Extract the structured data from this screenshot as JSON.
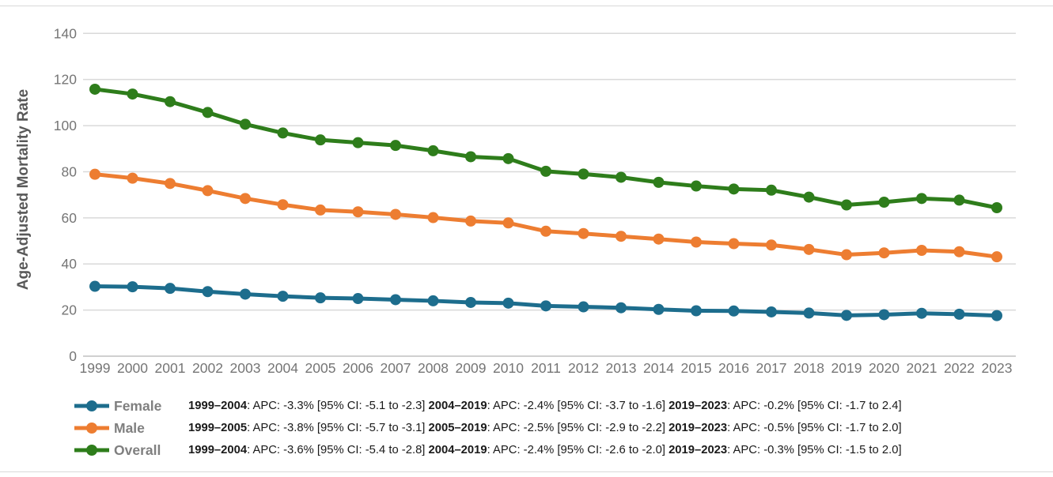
{
  "chart_data": {
    "type": "line",
    "title": "",
    "ylabel": "Age-Adjusted Mortality Rate",
    "xlabel": "",
    "ylim": [
      0,
      140
    ],
    "yticks": [
      0,
      20,
      40,
      60,
      80,
      100,
      120,
      140
    ],
    "grid": "horizontal-only",
    "legend_position": "bottom-left",
    "x": [
      1999,
      2000,
      2001,
      2002,
      2003,
      2004,
      2005,
      2006,
      2007,
      2008,
      2009,
      2010,
      2011,
      2012,
      2013,
      2014,
      2015,
      2016,
      2017,
      2018,
      2019,
      2020,
      2021,
      2022,
      2023
    ],
    "series": [
      {
        "name": "Female",
        "color": "#1D6D8D",
        "values": [
          30.3,
          30.1,
          29.4,
          28.0,
          26.9,
          26.0,
          25.3,
          25.0,
          24.5,
          24.0,
          23.3,
          23.0,
          21.8,
          21.4,
          21.0,
          20.3,
          19.7,
          19.6,
          19.2,
          18.7,
          17.7,
          18.0,
          18.6,
          18.2,
          17.6
        ]
      },
      {
        "name": "Male",
        "color": "#ED7D31",
        "values": [
          78.9,
          77.2,
          74.9,
          71.8,
          68.4,
          65.7,
          63.4,
          62.6,
          61.5,
          60.1,
          58.6,
          57.8,
          54.2,
          53.2,
          52.0,
          50.8,
          49.5,
          48.8,
          48.2,
          46.3,
          44.0,
          44.8,
          45.9,
          45.3,
          43.1
        ]
      },
      {
        "name": "Overall",
        "color": "#2E7D1B",
        "values": [
          115.8,
          113.7,
          110.4,
          105.7,
          100.6,
          96.8,
          93.8,
          92.6,
          91.4,
          89.1,
          86.5,
          85.7,
          80.2,
          79.0,
          77.6,
          75.4,
          73.8,
          72.5,
          72.0,
          69.0,
          65.6,
          66.8,
          68.4,
          67.7,
          64.4
        ]
      }
    ]
  },
  "legend": {
    "rows": [
      {
        "series": "Female",
        "color": "#1D6D8D",
        "segments": [
          {
            "text": "1999–2004",
            "bold": true
          },
          {
            "text": ": APC: -3.3% [95% CI: -5.1 to -2.3] ",
            "bold": false
          },
          {
            "text": "2004–2019",
            "bold": true
          },
          {
            "text": ": APC: -2.4% [95% CI: -3.7 to -1.6] ",
            "bold": false
          },
          {
            "text": "2019–2023",
            "bold": true
          },
          {
            "text": ": APC: -0.2% [95% CI: -1.7 to 2.4]",
            "bold": false
          }
        ]
      },
      {
        "series": "Male",
        "color": "#ED7D31",
        "segments": [
          {
            "text": "1999–2005",
            "bold": true
          },
          {
            "text": ": APC: -3.8% [95% CI: -5.7 to -3.1] ",
            "bold": false
          },
          {
            "text": "2005–2019",
            "bold": true
          },
          {
            "text": ": APC: -2.5% [95% CI: -2.9 to -2.2] ",
            "bold": false
          },
          {
            "text": "2019–2023",
            "bold": true
          },
          {
            "text": ": APC: -0.5% [95% CI: -1.7 to 2.0]",
            "bold": false
          }
        ]
      },
      {
        "series": "Overall",
        "color": "#2E7D1B",
        "segments": [
          {
            "text": "1999–2004",
            "bold": true
          },
          {
            "text": ": APC: -3.6% [95% CI: -5.4 to -2.8] ",
            "bold": false
          },
          {
            "text": "2004–2019",
            "bold": true
          },
          {
            "text": ": APC: -2.4% [95% CI: -2.6 to -2.0] ",
            "bold": false
          },
          {
            "text": "2019–2023",
            "bold": true
          },
          {
            "text": ": APC: -0.3% [95% CI: -1.5 to 2.0]",
            "bold": false
          }
        ]
      }
    ]
  },
  "colors": {
    "grid": "#D9D9D9",
    "axis": "#C0C0C0",
    "tick_text": "#757575",
    "axis_title_text": "#595959",
    "legend_name_text": "#7F7F7F",
    "stats_text": "#1A1A1A"
  }
}
